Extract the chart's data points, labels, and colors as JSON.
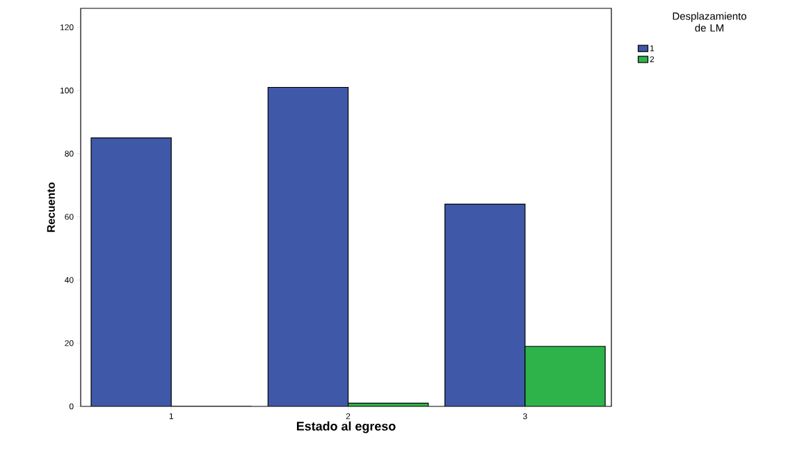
{
  "chart_data": {
    "type": "bar",
    "xlabel": "Estado al egreso",
    "ylabel": "Recuento",
    "legend_title": "Desplazamiento de LM",
    "categories": [
      "1",
      "2",
      "3"
    ],
    "series": [
      {
        "name": "1",
        "color": "#3f59a8",
        "values": [
          85,
          101,
          64
        ]
      },
      {
        "name": "2",
        "color": "#2db34a",
        "values": [
          0,
          1,
          19
        ]
      }
    ],
    "ylim": [
      0,
      126
    ],
    "yticks": [
      0,
      20,
      40,
      60,
      80,
      100,
      120
    ],
    "grid": false,
    "legend": "right"
  }
}
